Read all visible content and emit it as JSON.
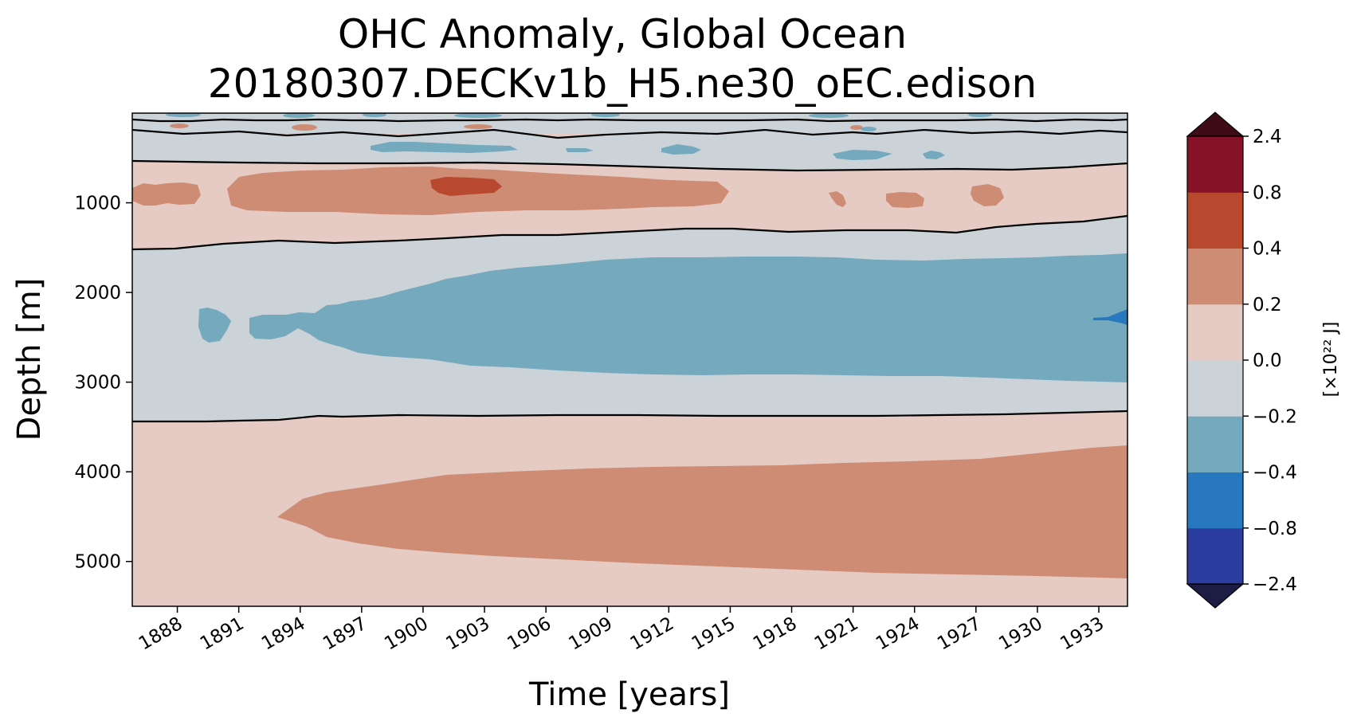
{
  "chart_data": {
    "type": "contourf",
    "title_line1": "OHC Anomaly, Global Ocean",
    "title_line2": "20180307.DECKv1b_H5.ne30_oEC.edison",
    "xlabel": "Time [years]",
    "ylabel": "Depth [m]",
    "xlim": [
      1885.8,
      1934.4
    ],
    "ylim": [
      5500,
      0
    ],
    "xticks": [
      "1888",
      "1891",
      "1894",
      "1897",
      "1900",
      "1903",
      "1906",
      "1909",
      "1912",
      "1915",
      "1918",
      "1921",
      "1924",
      "1927",
      "1930",
      "1933"
    ],
    "yticks": [
      "1000",
      "2000",
      "3000",
      "4000",
      "5000"
    ],
    "colorbar": {
      "label": "[×10²² J]",
      "levels": [
        "−2.4",
        "−0.8",
        "−0.4",
        "−0.2",
        "0.0",
        "0.2",
        "0.4",
        "0.8",
        "2.4"
      ],
      "colors": [
        "#2b3d9e",
        "#2878bf",
        "#74a9be",
        "#cbd3d8",
        "#e5cbc4",
        "#cd8c73",
        "#b8482e",
        "#861228"
      ],
      "extend_low_color": "#1c1c44",
      "extend_high_color": "#3f0c16"
    },
    "zero_contour_depths_m": [
      600,
      1450,
      3400
    ],
    "features": [
      {
        "band": "0-600 m",
        "value_range": "0.0 to 0.2 near surface, -0.2 to 0.0 below ~300 m"
      },
      {
        "band": "600-1450 m",
        "value_range": "0.0 to 0.2 with 0.2 to 0.4 core near 900 m, 0.4 to 0.8 near 1902"
      },
      {
        "band": "1450-3400 m",
        "value_range": "-0.2 to 0.0 with -0.4 to -0.2 core near 2400 m, -0.8 to -0.4 near 1933"
      },
      {
        "band": "3400-5500 m",
        "value_range": "0.0 to 0.2 with 0.2 to 0.4 core near 4500 m after 1893"
      }
    ]
  }
}
